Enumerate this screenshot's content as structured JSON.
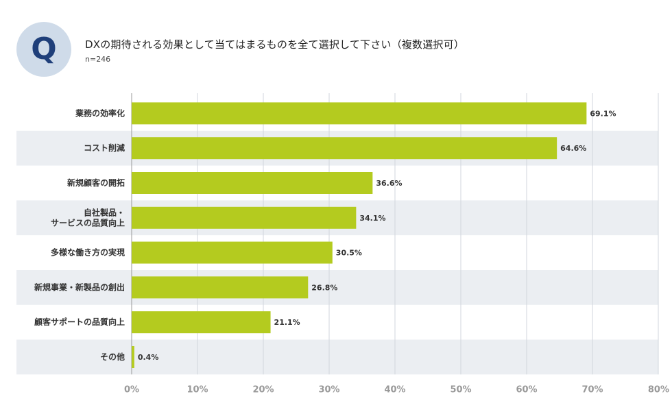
{
  "question": {
    "badge": "Q",
    "title": "DXの期待される効果として当てはまるものを全て選択して下さい（複数選択可）",
    "n": "n=246"
  },
  "colors": {
    "bar": "#b4cb1f",
    "band": "#ebeef2",
    "grid": "#d0d5dc",
    "badge_bg": "#cfdbe9",
    "badge_text": "#1f3f7a"
  },
  "chart_data": {
    "type": "bar",
    "orientation": "horizontal",
    "categories": [
      [
        "業務の効率化"
      ],
      [
        "コスト削減"
      ],
      [
        "新規顧客の開拓"
      ],
      [
        "自社製品・",
        "サービスの品質向上"
      ],
      [
        "多様な働き方の実現"
      ],
      [
        "新規事業・新製品の創出"
      ],
      [
        "顧客サポートの品質向上"
      ],
      [
        "その他"
      ]
    ],
    "values": [
      69.1,
      64.6,
      36.6,
      34.1,
      30.5,
      26.8,
      21.1,
      0.4
    ],
    "value_labels": [
      "69.1%",
      "64.6%",
      "36.6%",
      "34.1%",
      "30.5%",
      "26.8%",
      "21.1%",
      "0.4%"
    ],
    "xlim": [
      0,
      80
    ],
    "xticks": [
      0,
      10,
      20,
      30,
      40,
      50,
      60,
      70,
      80
    ],
    "xtick_labels": [
      "0%",
      "10%",
      "20%",
      "30%",
      "40%",
      "50%",
      "60%",
      "70%",
      "80%"
    ],
    "grid": true,
    "xlabel": "",
    "ylabel": ""
  }
}
